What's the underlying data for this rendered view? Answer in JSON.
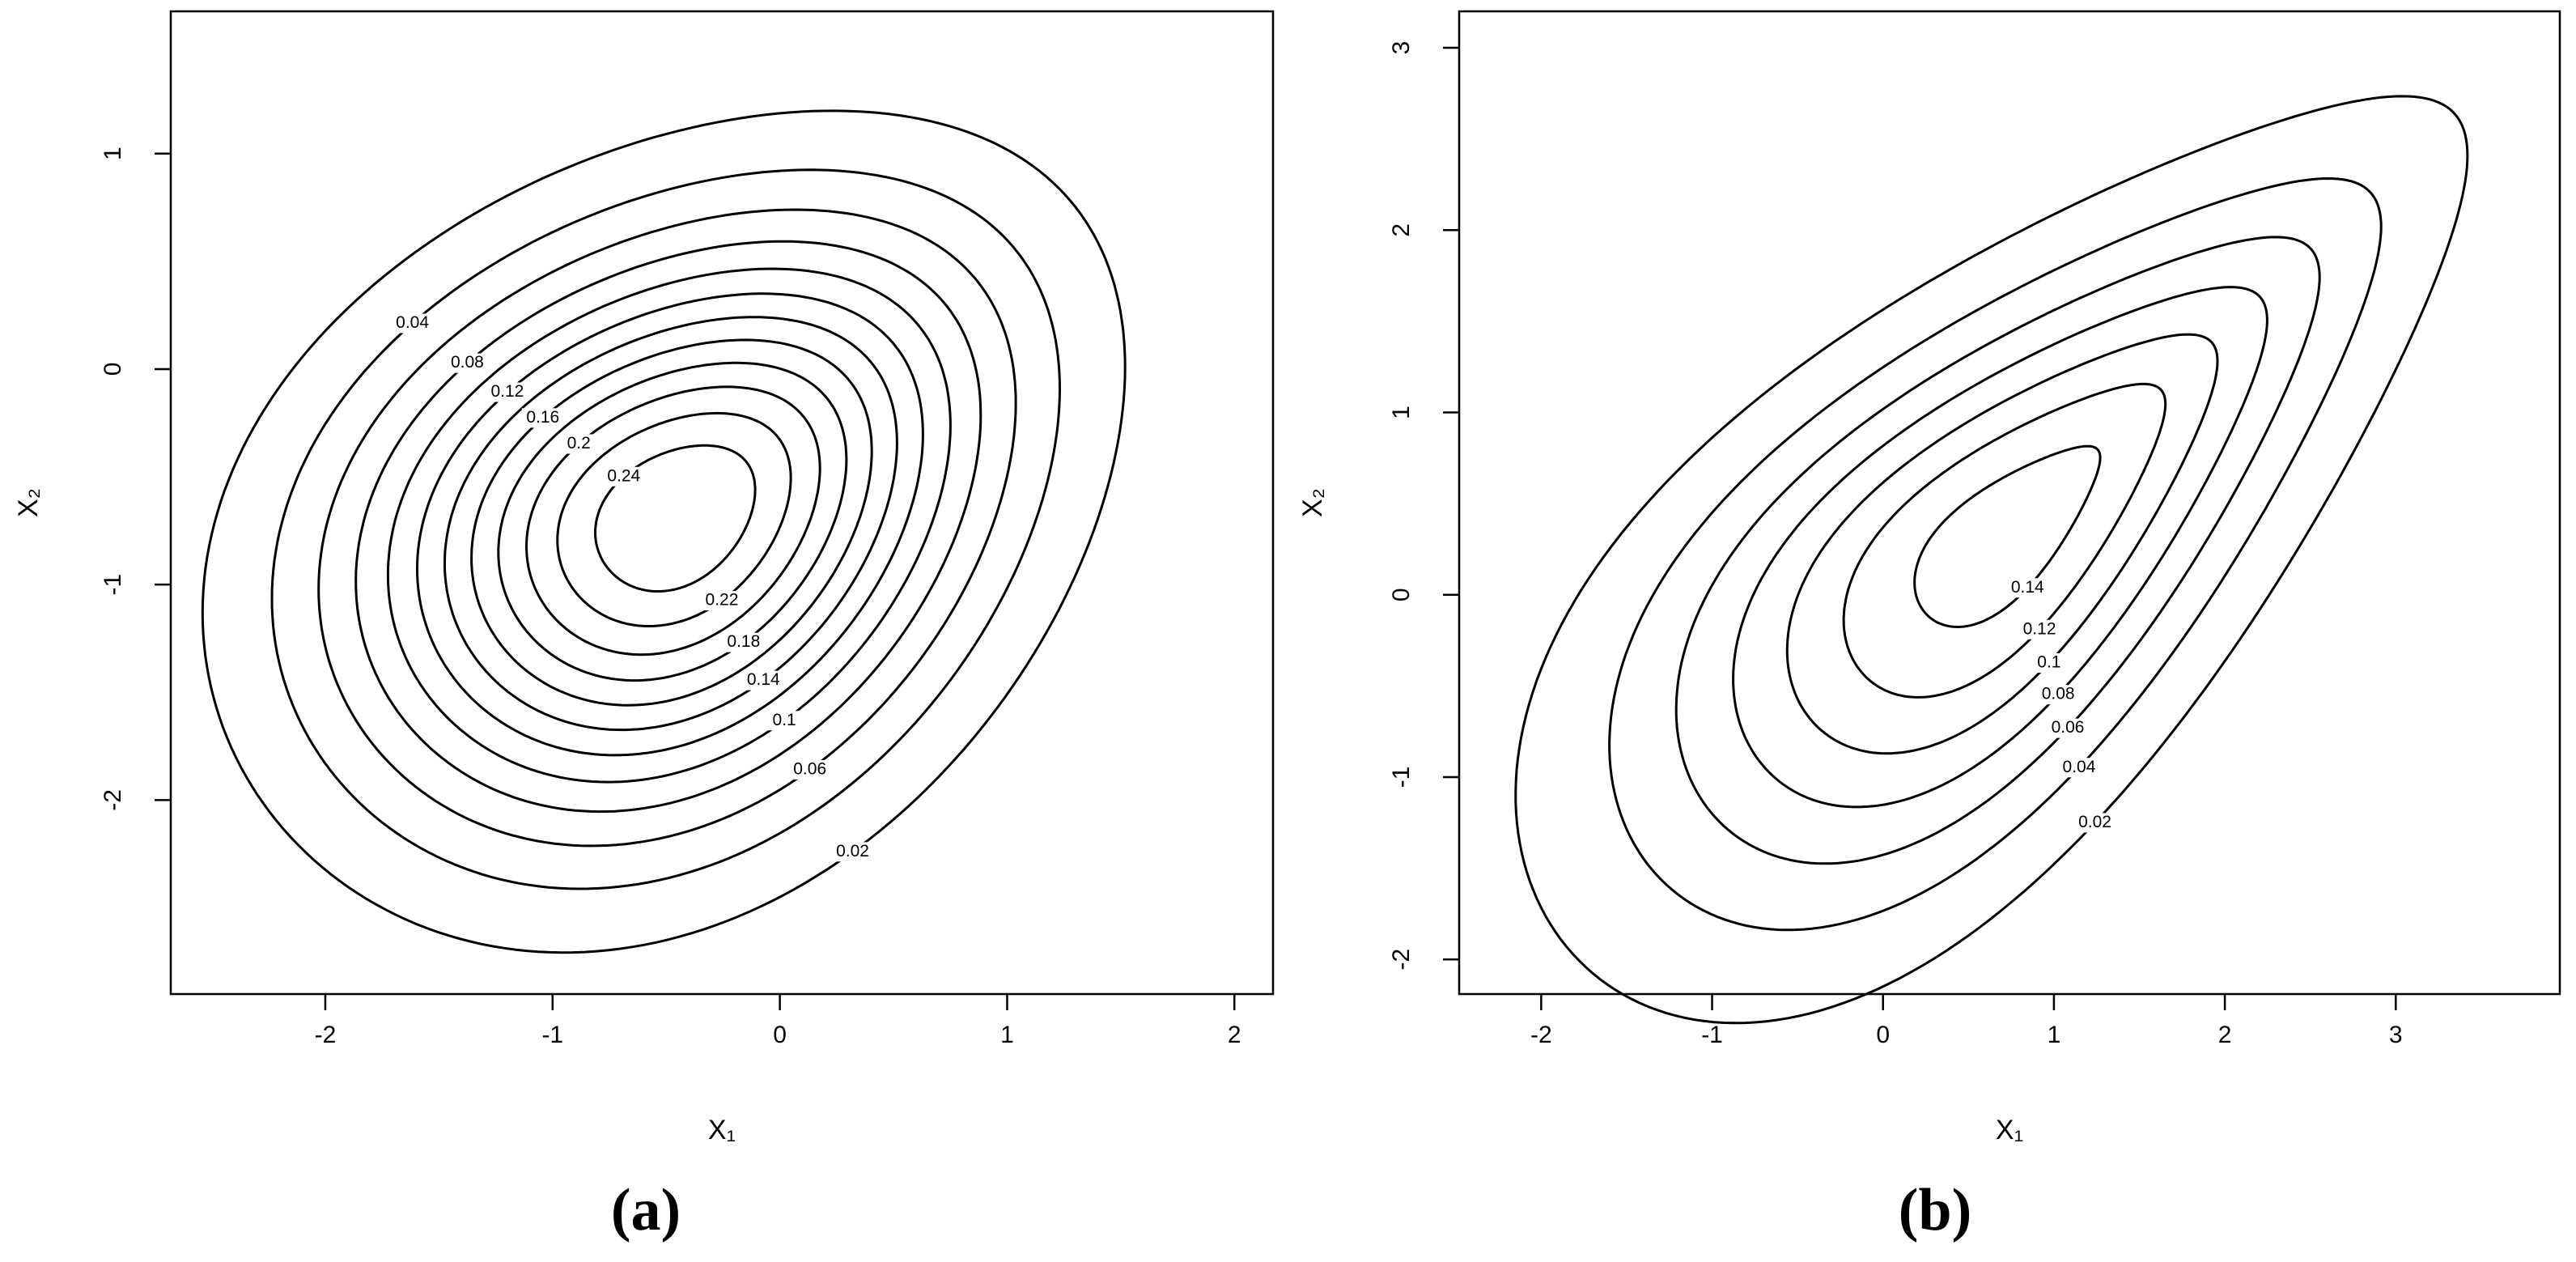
{
  "chart_data": [
    {
      "type": "contour",
      "caption": "(a)",
      "xlabel": "X₁",
      "ylabel": "X₂",
      "levels": [
        0.02,
        0.04,
        0.06,
        0.08,
        0.1,
        0.12,
        0.14,
        0.16,
        0.18,
        0.2,
        0.22,
        0.24
      ],
      "xlim": [
        -2.68,
        2.17
      ],
      "ylim": [
        -2.9,
        1.66
      ],
      "xticks": [
        -2,
        -1,
        0,
        1,
        2
      ],
      "yticks": [
        -2,
        -1,
        0,
        1
      ]
    },
    {
      "type": "contour",
      "caption": "(b)",
      "xlabel": "X₁",
      "ylabel": "X₂",
      "levels": [
        0.02,
        0.04,
        0.06,
        0.08,
        0.1,
        0.12,
        0.14
      ],
      "xlim": [
        -2.48,
        3.96
      ],
      "ylim": [
        -2.19,
        3.2
      ],
      "xticks": [
        -2,
        -1,
        0,
        1,
        2,
        3
      ],
      "yticks": [
        -2,
        -1,
        0,
        1,
        2,
        3
      ]
    }
  ]
}
